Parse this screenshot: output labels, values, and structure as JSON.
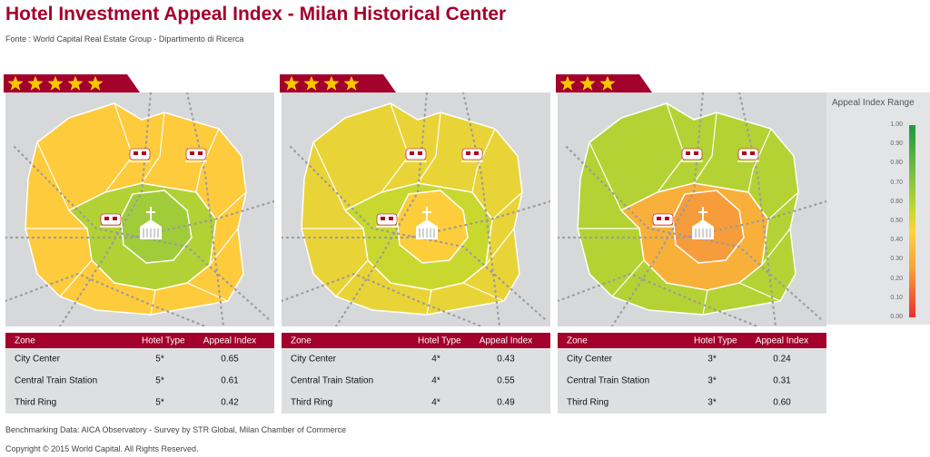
{
  "title": "Hotel Investment Appeal Index - Milan Historical Center",
  "source": "Fonte : World Capital Real Estate Group - Dipartimento di Ricerca",
  "legend": {
    "title": "Appeal Index Range",
    "ticks": [
      "1.00",
      "0.90",
      "0.80",
      "0.70",
      "0.60",
      "0.50",
      "0.40",
      "0.30",
      "0.20",
      "0.10",
      "0.00"
    ]
  },
  "table_headers": {
    "zone": "Zone",
    "type": "Hotel Type",
    "index": "Appeal Index"
  },
  "colors": {
    "brand": "#a3002b",
    "star": "#f7c600",
    "scale_high": "#1a9a3e",
    "scale_mid": "#ffd23c",
    "scale_low": "#ec2e2e"
  },
  "icons": [
    "star-icon",
    "train-icon",
    "cathedral-icon"
  ],
  "panels": [
    {
      "stars": 5,
      "rows": [
        {
          "zone": "City Center",
          "type": "5*",
          "index": "0.65"
        },
        {
          "zone": "Central Train Station",
          "type": "5*",
          "index": "0.61"
        },
        {
          "zone": "Third Ring",
          "type": "5*",
          "index": "0.42"
        }
      ]
    },
    {
      "stars": 4,
      "rows": [
        {
          "zone": "City Center",
          "type": "4*",
          "index": "0.43"
        },
        {
          "zone": "Central Train Station",
          "type": "4*",
          "index": "0.55"
        },
        {
          "zone": "Third Ring",
          "type": "4*",
          "index": "0.49"
        }
      ]
    },
    {
      "stars": 3,
      "rows": [
        {
          "zone": "City Center",
          "type": "3*",
          "index": "0.24"
        },
        {
          "zone": "Central Train Station",
          "type": "3*",
          "index": "0.31"
        },
        {
          "zone": "Third Ring",
          "type": "3*",
          "index": "0.60"
        }
      ]
    }
  ],
  "chart_data": {
    "type": "table",
    "title": "Hotel Investment Appeal Index - Milan Historical Center",
    "columns": [
      "Zone",
      "Hotel Type",
      "Appeal Index"
    ],
    "rows": [
      [
        "City Center",
        "5*",
        0.65
      ],
      [
        "Central Train Station",
        "5*",
        0.61
      ],
      [
        "Third Ring",
        "5*",
        0.42
      ],
      [
        "City Center",
        "4*",
        0.43
      ],
      [
        "Central Train Station",
        "4*",
        0.55
      ],
      [
        "Third Ring",
        "4*",
        0.49
      ],
      [
        "City Center",
        "3*",
        0.24
      ],
      [
        "Central Train Station",
        "3*",
        0.31
      ],
      [
        "Third Ring",
        "3*",
        0.6
      ]
    ],
    "color_scale": {
      "min": 0.0,
      "max": 1.0
    }
  },
  "footer": {
    "benchmark": "Benchmarking Data: AICA Observatory - Survey by STR Global,  Milan Chamber of Commerce",
    "copyright": "Copyright © 2015 World Capital. All Rights Reserved."
  }
}
